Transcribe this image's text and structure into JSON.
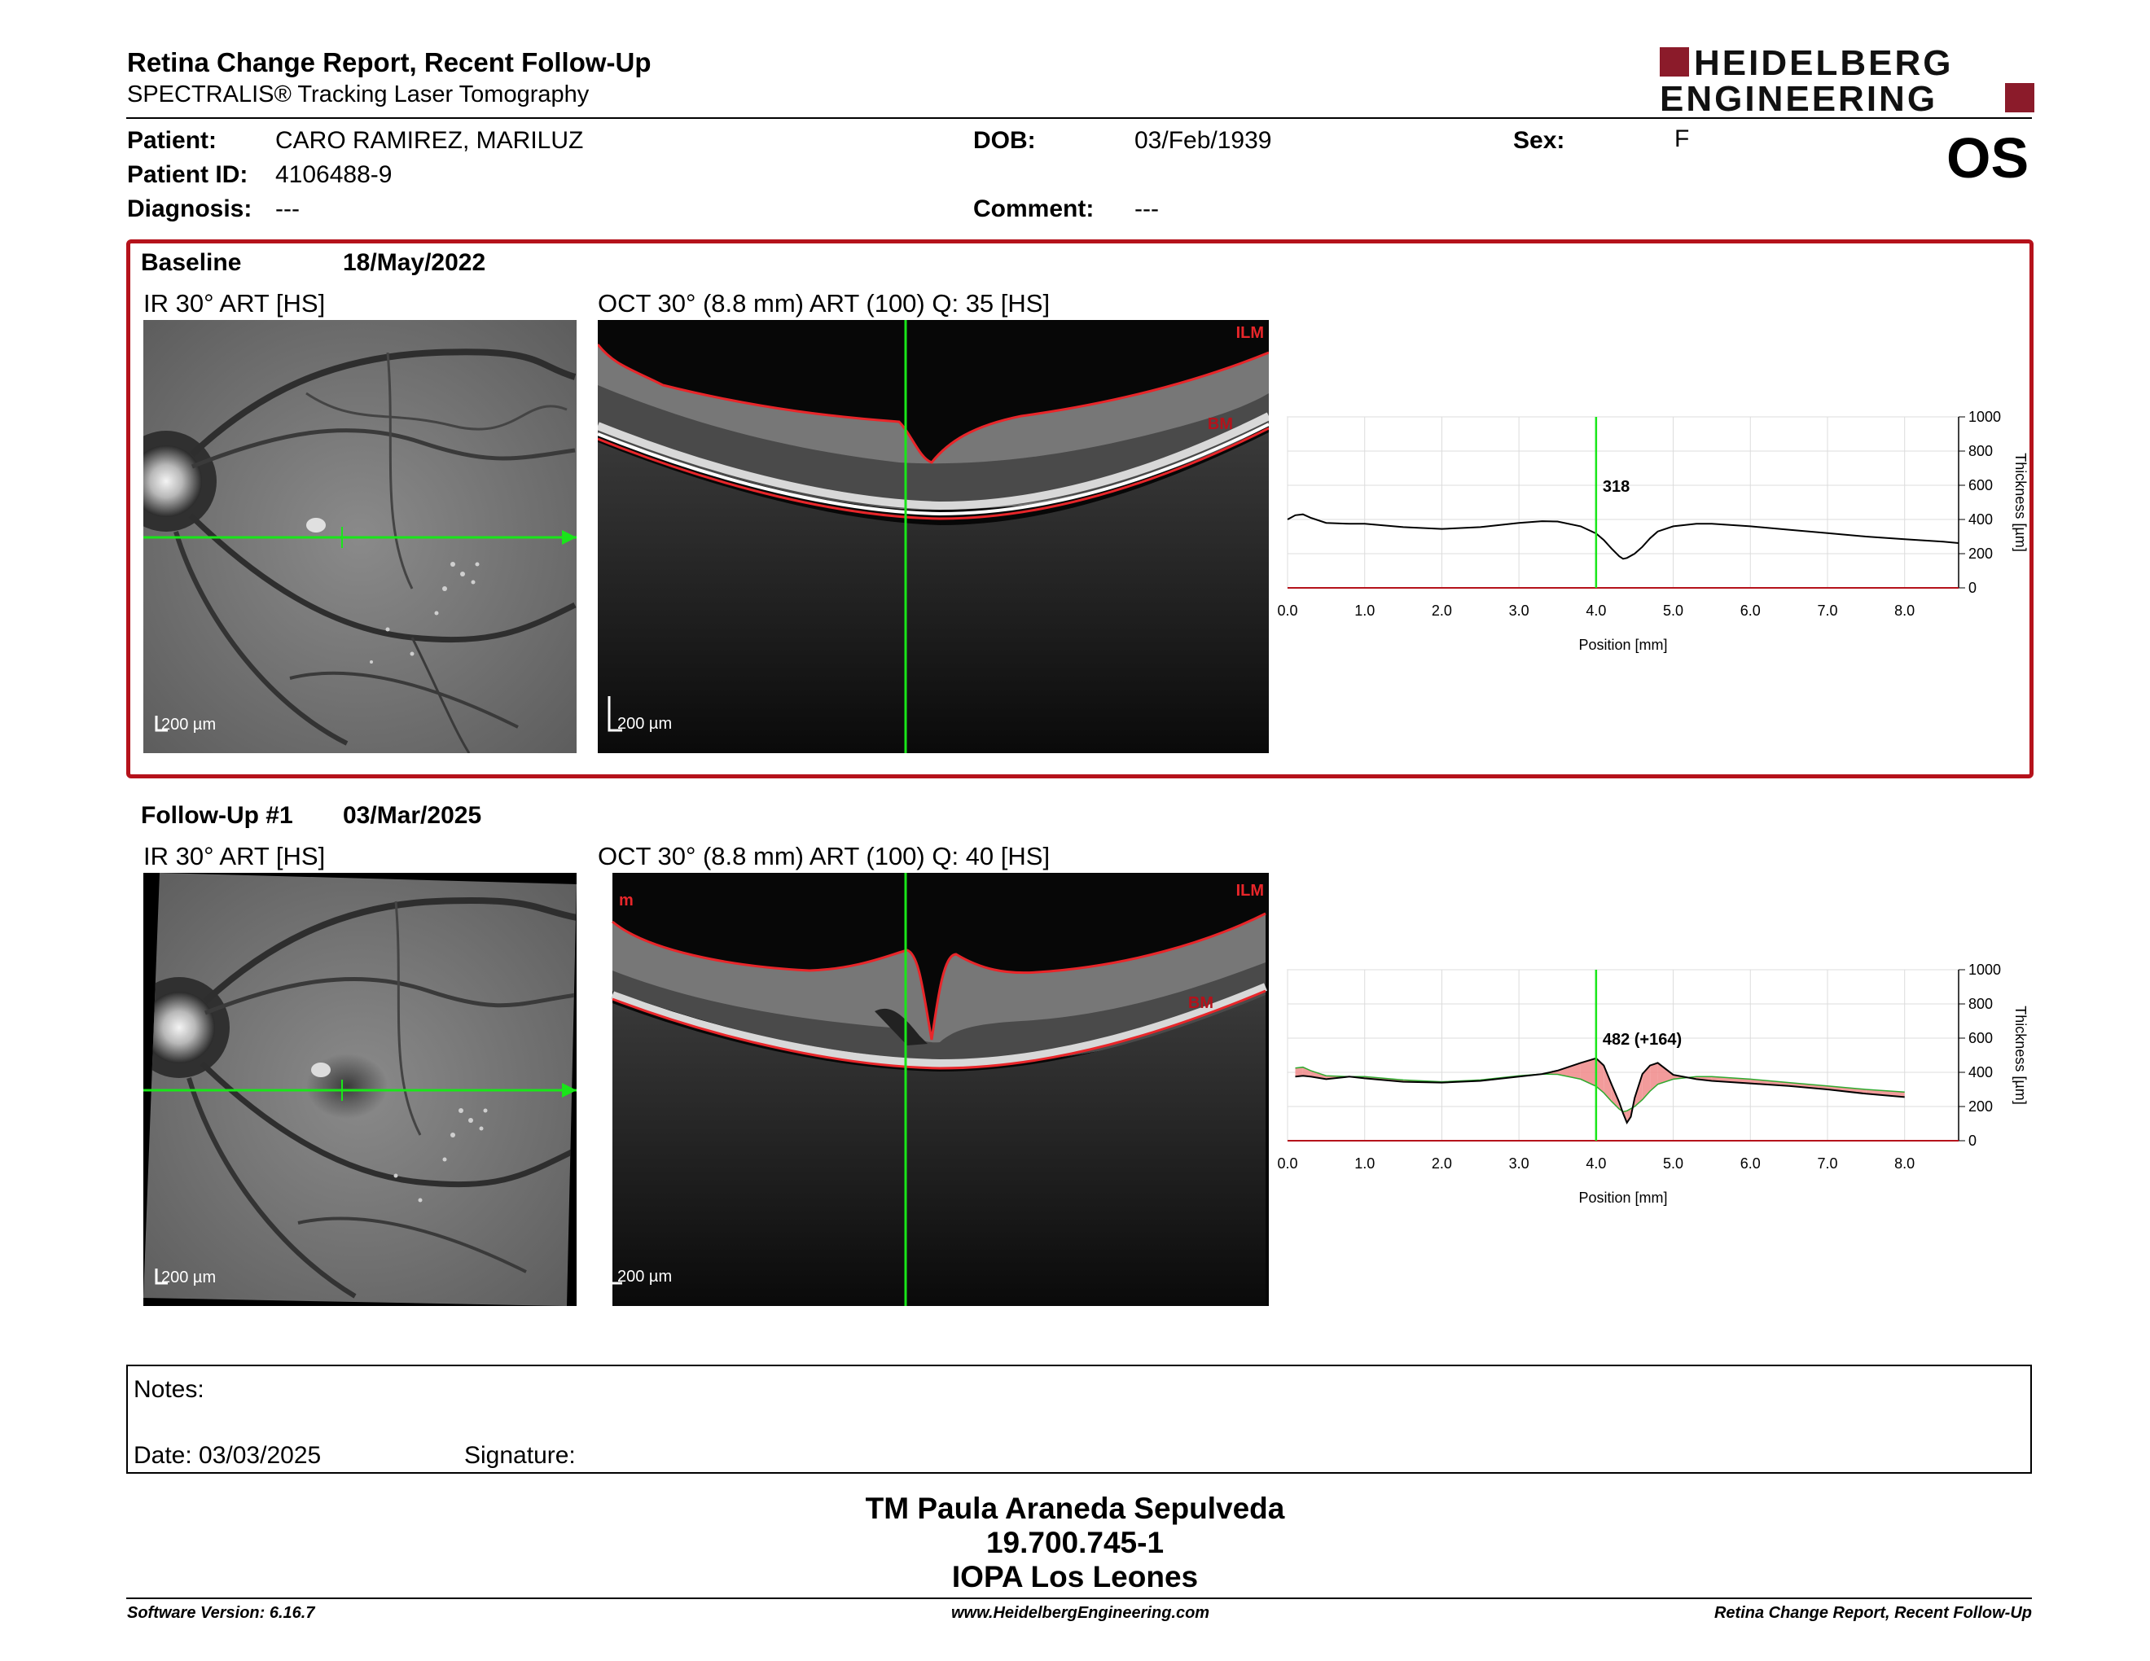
{
  "header": {
    "title": "Retina Change Report, Recent Follow-Up",
    "subtitle": "SPECTRALIS® Tracking Laser Tomography",
    "logo_line1": "HEIDELBERG",
    "logo_line2": "ENGINEERING",
    "eye": "OS"
  },
  "patient": {
    "patient_label": "Patient:",
    "patient_value": "CARO RAMIREZ, MARILUZ",
    "id_label": "Patient ID:",
    "id_value": "4106488-9",
    "diagnosis_label": "Diagnosis:",
    "diagnosis_value": "---",
    "dob_label": "DOB:",
    "dob_value": "03/Feb/1939",
    "comment_label": "Comment:",
    "comment_value": "---",
    "sex_label": "Sex:",
    "sex_value": "F"
  },
  "colors": {
    "accent_red": "#b5121b",
    "scan_line_green": "#19e619",
    "segmentation_red": "#e8262a",
    "change_fill": "#f08a8a"
  },
  "baseline": {
    "label": "Baseline",
    "date": "18/May/2022",
    "ir_caption": "IR 30° ART [HS]",
    "oct_caption": "OCT 30° (8.8 mm) ART (100) Q: 35 [HS]",
    "ir_scale": "200 µm",
    "oct_scale": "200 µm",
    "ilm_label": "ILM",
    "bm_label": "BM",
    "readout": "318"
  },
  "followup": {
    "label": "Follow-Up #1",
    "date": "03/Mar/2025",
    "ir_caption": "IR 30° ART [HS]",
    "oct_caption": "OCT 30° (8.8 mm) ART (100) Q: 40 [HS]",
    "ir_scale": "200 µm",
    "oct_scale": "200 µm",
    "ilm_label": "ILM",
    "bm_label": "BM",
    "corner_label": "m",
    "readout": "482 (+164)"
  },
  "chart_data": [
    {
      "type": "line",
      "xlabel": "Position [mm]",
      "ylabel": "Thickness [µm]",
      "xlim": [
        0,
        8.7
      ],
      "ylim": [
        0,
        1000
      ],
      "x_ticks": [
        "0.0",
        "1.0",
        "2.0",
        "3.0",
        "4.0",
        "5.0",
        "6.0",
        "7.0",
        "8.0"
      ],
      "y_ticks": [
        "0",
        "200",
        "400",
        "600",
        "800",
        "1000"
      ],
      "cursor_x": 4.0,
      "grid": true,
      "series": [
        {
          "x": [
            0,
            0.1,
            0.2,
            0.3,
            0.5,
            0.8,
            1.0,
            1.5,
            2.0,
            2.5,
            3.0,
            3.3,
            3.5,
            3.8,
            4.0,
            4.1,
            4.2,
            4.3,
            4.35,
            4.4,
            4.5,
            4.6,
            4.7,
            4.8,
            5.0,
            5.3,
            5.5,
            6.0,
            6.5,
            7.0,
            7.5,
            8.0,
            8.5,
            8.7
          ],
          "y": [
            400,
            425,
            430,
            410,
            380,
            375,
            375,
            355,
            345,
            355,
            380,
            390,
            388,
            360,
            318,
            280,
            230,
            185,
            170,
            175,
            200,
            240,
            290,
            330,
            360,
            375,
            375,
            360,
            340,
            320,
            300,
            285,
            270,
            262
          ]
        }
      ]
    },
    {
      "type": "line",
      "xlabel": "Position [mm]",
      "ylabel": "Thickness [µm]",
      "xlim": [
        0,
        8.7
      ],
      "ylim": [
        0,
        1000
      ],
      "x_ticks": [
        "0.0",
        "1.0",
        "2.0",
        "3.0",
        "4.0",
        "5.0",
        "6.0",
        "7.0",
        "8.0"
      ],
      "y_ticks": [
        "0",
        "200",
        "400",
        "600",
        "800",
        "1000"
      ],
      "cursor_x": 4.0,
      "grid": true,
      "series": [
        {
          "x": [
            0.1,
            0.2,
            0.3,
            0.5,
            0.8,
            1.0,
            1.5,
            2.0,
            2.5,
            3.0,
            3.3,
            3.5,
            3.8,
            4.0,
            4.1,
            4.2,
            4.3,
            4.35,
            4.4,
            4.45,
            4.5,
            4.6,
            4.7,
            4.8,
            5.0,
            5.3,
            5.5,
            6.0,
            6.5,
            7.0,
            7.5,
            8.0
          ],
          "y": [
            375,
            380,
            375,
            360,
            375,
            365,
            345,
            340,
            350,
            375,
            390,
            410,
            455,
            482,
            440,
            330,
            225,
            160,
            105,
            140,
            250,
            390,
            440,
            455,
            385,
            360,
            350,
            335,
            320,
            300,
            275,
            255
          ]
        }
      ]
    }
  ],
  "notes": {
    "notes_label": "Notes:",
    "date_label": "Date: 03/03/2025",
    "signature_label": "Signature:"
  },
  "signature_block": {
    "name": "TM Paula Araneda Sepulveda",
    "id": "19.700.745-1",
    "org": "IOPA Los Leones"
  },
  "footer": {
    "software": "Software Version: 6.16.7",
    "website": "www.HeidelbergEngineering.com",
    "report": "Retina Change Report, Recent Follow-Up"
  }
}
